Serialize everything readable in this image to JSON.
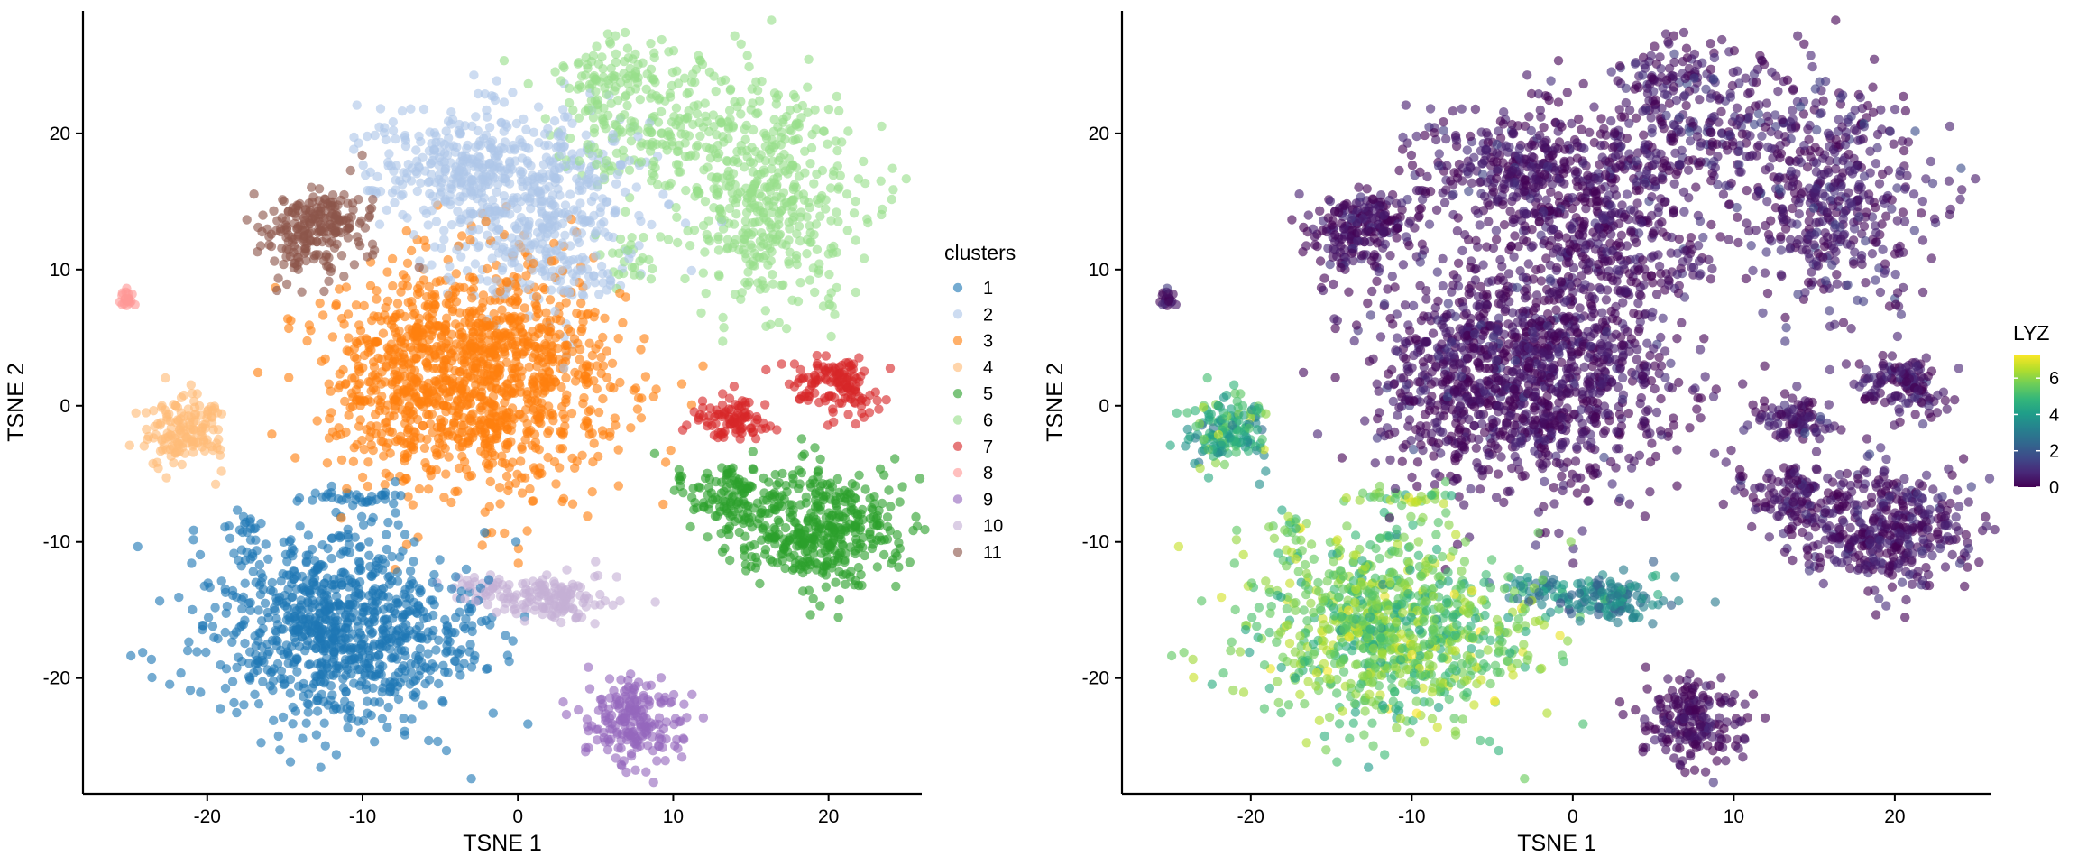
{
  "chart_data": [
    {
      "type": "scatter",
      "xlabel": "TSNE 1",
      "ylabel": "TSNE 2",
      "xlim": [
        -28,
        26
      ],
      "ylim": [
        -28.5,
        29
      ],
      "x_ticks": [
        -20,
        -10,
        0,
        10,
        20
      ],
      "y_ticks": [
        -20,
        -10,
        0,
        10,
        20
      ],
      "x_tick_labels": [
        "-20",
        "-10",
        "0",
        "10",
        "20"
      ],
      "y_tick_labels": [
        "-20",
        "-10",
        "0",
        "10",
        "20"
      ],
      "grid": false,
      "legend": {
        "title": "clusters",
        "placement": "right",
        "labels": [
          "1",
          "2",
          "3",
          "4",
          "5",
          "6",
          "7",
          "8",
          "9",
          "10",
          "11"
        ]
      },
      "colors": [
        "#1f77b4",
        "#aec7e8",
        "#ff7f0e",
        "#ffbb78",
        "#2ca02c",
        "#98df8a",
        "#d62728",
        "#ff9896",
        "#9467bd",
        "#c5b0d5",
        "#8c564b"
      ],
      "clusters": [
        {
          "label": "1",
          "blobs": [
            {
              "cx": -11.5,
              "cy": -16.5,
              "sx": 4.2,
              "sy": 3.6,
              "n": 900
            },
            {
              "cx": -11,
              "cy": -6.7,
              "sx": 1.8,
              "sy": 0.3,
              "n": 30
            },
            {
              "cx": -17.5,
              "cy": -9.5,
              "sx": 0.7,
              "sy": 1.5,
              "n": 25
            },
            {
              "cx": -3.8,
              "cy": -18.5,
              "sx": 0.6,
              "sy": 0.5,
              "n": 12
            }
          ]
        },
        {
          "label": "2",
          "blobs": [
            {
              "cx": 1,
              "cy": 15,
              "sx": 3.5,
              "sy": 3.5,
              "n": 500
            },
            {
              "cx": -5,
              "cy": 18,
              "sx": 2.7,
              "sy": 2.0,
              "n": 200
            },
            {
              "cx": 4,
              "cy": 9.5,
              "sx": 1.5,
              "sy": 1.0,
              "n": 40
            }
          ]
        },
        {
          "label": "3",
          "blobs": [
            {
              "cx": -3,
              "cy": 2,
              "sx": 4.6,
              "sy": 4.1,
              "n": 1300
            }
          ]
        },
        {
          "label": "4",
          "blobs": [
            {
              "cx": -21.5,
              "cy": -1.8,
              "sx": 1.3,
              "sy": 1.4,
              "n": 150
            }
          ]
        },
        {
          "label": "5",
          "blobs": [
            {
              "cx": 19.5,
              "cy": -9,
              "sx": 2.5,
              "sy": 2.1,
              "n": 400
            },
            {
              "cx": 14,
              "cy": -7,
              "sx": 1.6,
              "sy": 1.5,
              "n": 120
            },
            {
              "cx": 10.5,
              "cy": -5.5,
              "sx": 0.2,
              "sy": 0.6,
              "n": 8
            }
          ]
        },
        {
          "label": "6",
          "blobs": [
            {
              "cx": 16,
              "cy": 15,
              "sx": 2.9,
              "sy": 4.1,
              "n": 450
            },
            {
              "cx": 8.5,
              "cy": 20,
              "sx": 3.0,
              "sy": 2.0,
              "n": 180
            },
            {
              "cx": 7,
              "cy": 24.5,
              "sx": 2.5,
              "sy": 1.2,
              "n": 100
            },
            {
              "cx": 7,
              "cy": 10.5,
              "sx": 1.0,
              "sy": 1.0,
              "n": 25
            }
          ]
        },
        {
          "label": "7",
          "blobs": [
            {
              "cx": 20.5,
              "cy": 1.5,
              "sx": 1.4,
              "sy": 1.1,
              "n": 130
            },
            {
              "cx": 14,
              "cy": -1,
              "sx": 1.2,
              "sy": 0.9,
              "n": 90
            }
          ]
        },
        {
          "label": "8",
          "blobs": [
            {
              "cx": -25.2,
              "cy": 7.8,
              "sx": 0.25,
              "sy": 0.35,
              "n": 20
            }
          ]
        },
        {
          "label": "9",
          "blobs": [
            {
              "cx": 7.5,
              "cy": -23,
              "sx": 1.6,
              "sy": 1.6,
              "n": 200
            }
          ]
        },
        {
          "label": "10",
          "blobs": [
            {
              "cx": 2.5,
              "cy": -14.2,
              "sx": 1.8,
              "sy": 0.8,
              "n": 130
            },
            {
              "cx": -2,
              "cy": -13.5,
              "sx": 1.2,
              "sy": 0.6,
              "n": 40
            }
          ]
        },
        {
          "label": "11",
          "blobs": [
            {
              "cx": -13,
              "cy": 13,
              "sx": 1.7,
              "sy": 1.6,
              "n": 230
            }
          ]
        }
      ]
    },
    {
      "type": "scatter",
      "xlabel": "TSNE 1",
      "ylabel": "TSNE 2",
      "xlim": [
        -28,
        26
      ],
      "ylim": [
        -28.5,
        29
      ],
      "x_ticks": [
        -20,
        -10,
        0,
        10,
        20
      ],
      "y_ticks": [
        -20,
        -10,
        0,
        10,
        20
      ],
      "x_tick_labels": [
        "-20",
        "-10",
        "0",
        "10",
        "20"
      ],
      "y_tick_labels": [
        "-20",
        "-10",
        "0",
        "10",
        "20"
      ],
      "grid": false,
      "legend": {
        "title": "LYZ",
        "placement": "right",
        "type": "colorbar",
        "range": [
          0,
          7.3
        ],
        "ticks": [
          0,
          2,
          4,
          6
        ],
        "tick_labels": [
          "0",
          "2",
          "4",
          "6"
        ],
        "colormap": [
          "#440154",
          "#482878",
          "#3e4a89",
          "#31688e",
          "#26828e",
          "#1f9e89",
          "#35b779",
          "#6ece58",
          "#b5de2b",
          "#fde725"
        ]
      },
      "expression_by_cluster": [
        {
          "label": "1",
          "mean": 5.6,
          "sd": 0.7
        },
        {
          "label": "2",
          "mean": 0.3,
          "sd": 0.4
        },
        {
          "label": "3",
          "mean": 0.3,
          "sd": 0.4
        },
        {
          "label": "4",
          "mean": 4.5,
          "sd": 0.8
        },
        {
          "label": "5",
          "mean": 0.4,
          "sd": 0.4
        },
        {
          "label": "6",
          "mean": 0.5,
          "sd": 0.5
        },
        {
          "label": "7",
          "mean": 0.4,
          "sd": 0.4
        },
        {
          "label": "8",
          "mean": 0.3,
          "sd": 0.3
        },
        {
          "label": "9",
          "mean": 0.2,
          "sd": 0.3
        },
        {
          "label": "10",
          "mean": 3.2,
          "sd": 0.6
        },
        {
          "label": "11",
          "mean": 0.3,
          "sd": 0.4
        }
      ]
    }
  ]
}
